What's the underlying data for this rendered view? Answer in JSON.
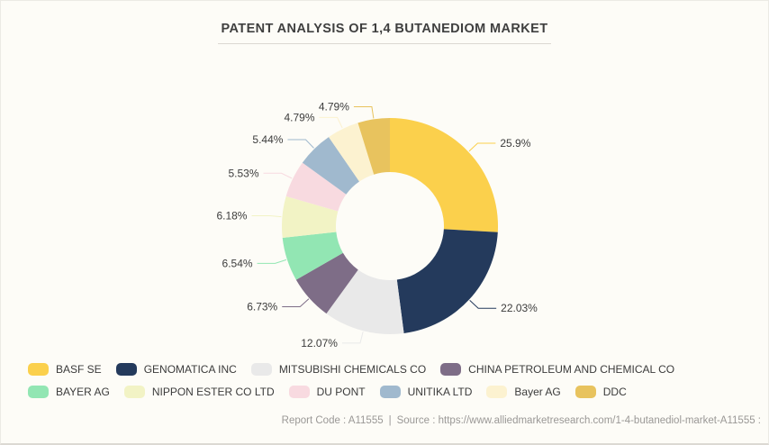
{
  "title": "PATENT ANALYSIS OF 1,4 BUTANEDIOM MARKET",
  "footer": {
    "report_code": "Report Code : A11555",
    "separator": "|",
    "source": "Source : https://www.alliedmarketresearch.com/1-4-butanediol-market-A11555 :"
  },
  "colors": {
    "background": "#FDFCF7",
    "title_text": "#3F3F3F",
    "label_text": "#3C3C3C",
    "footer_text": "#9A9896"
  },
  "chart_data": {
    "type": "pie",
    "subtype": "donut",
    "title": "PATENT ANALYSIS OF 1,4 BUTANEDIOM MARKET",
    "legend_position": "bottom",
    "start_angle_deg": -90,
    "direction": "clockwise",
    "series": [
      {
        "name": "BASF SE",
        "value": 25.9,
        "color": "#FBD04C"
      },
      {
        "name": "GENOMATICA INC",
        "value": 22.03,
        "color": "#243A5C"
      },
      {
        "name": "MITSUBISHI CHEMICALS CO",
        "value": 12.07,
        "color": "#E9E9E9"
      },
      {
        "name": "CHINA PETROLEUM AND CHEMICAL CO",
        "value": 6.73,
        "color": "#7E6D87"
      },
      {
        "name": "BAYER AG",
        "value": 6.54,
        "color": "#92E6B3"
      },
      {
        "name": "NIPPON ESTER CO LTD",
        "value": 6.18,
        "color": "#F2F3C5"
      },
      {
        "name": "DU PONT",
        "value": 5.53,
        "color": "#F8DAE0"
      },
      {
        "name": "UNITIKA LTD",
        "value": 5.44,
        "color": "#A0B9CE"
      },
      {
        "name": "Bayer AG",
        "value": 4.79,
        "color": "#FCF2D0"
      },
      {
        "name": "DDC",
        "value": 4.79,
        "color": "#E8C35E"
      }
    ],
    "labels": [
      "25.9%",
      "22.03%",
      "12.07%",
      "6.73%",
      "6.54%",
      "6.18%",
      "5.53%",
      "5.44%",
      "4.79%",
      "4.79%"
    ]
  }
}
